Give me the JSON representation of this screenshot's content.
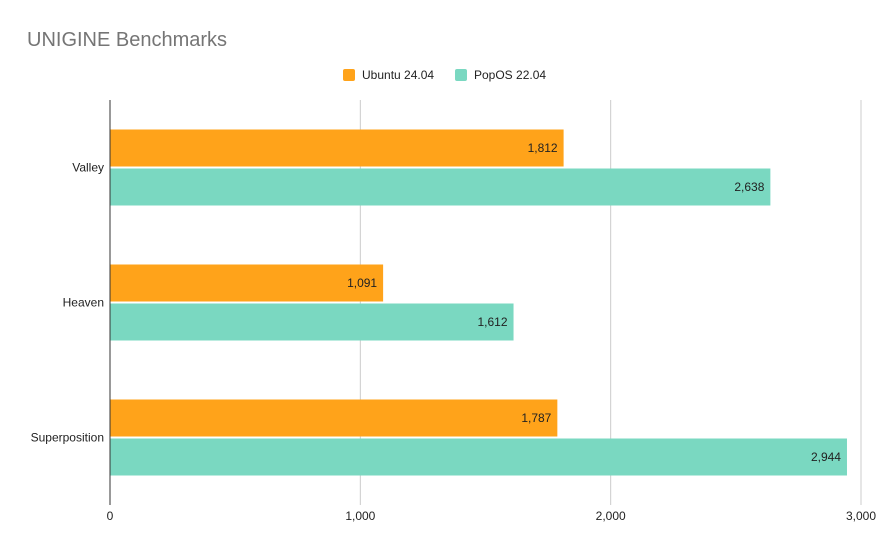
{
  "chart_data": {
    "type": "bar",
    "orientation": "horizontal",
    "title": "UNIGINE Benchmarks",
    "categories": [
      "Valley",
      "Heaven",
      "Superposition"
    ],
    "series": [
      {
        "name": "Ubuntu 24.04",
        "color": "#ffa31a",
        "values": [
          1812,
          1091,
          1787
        ],
        "labels": [
          "1,812",
          "1,091",
          "1,787"
        ]
      },
      {
        "name": "PopOS 22.04",
        "color": "#7ad8c1",
        "values": [
          2638,
          1612,
          2944
        ],
        "labels": [
          "2,638",
          "1,612",
          "2,944"
        ]
      }
    ],
    "xlim": [
      0,
      3000
    ],
    "xticks": [
      0,
      1000,
      2000,
      3000
    ],
    "xtick_labels": [
      "0",
      "1,000",
      "2,000",
      "3,000"
    ],
    "grid": true,
    "legend_position": "top-center"
  }
}
